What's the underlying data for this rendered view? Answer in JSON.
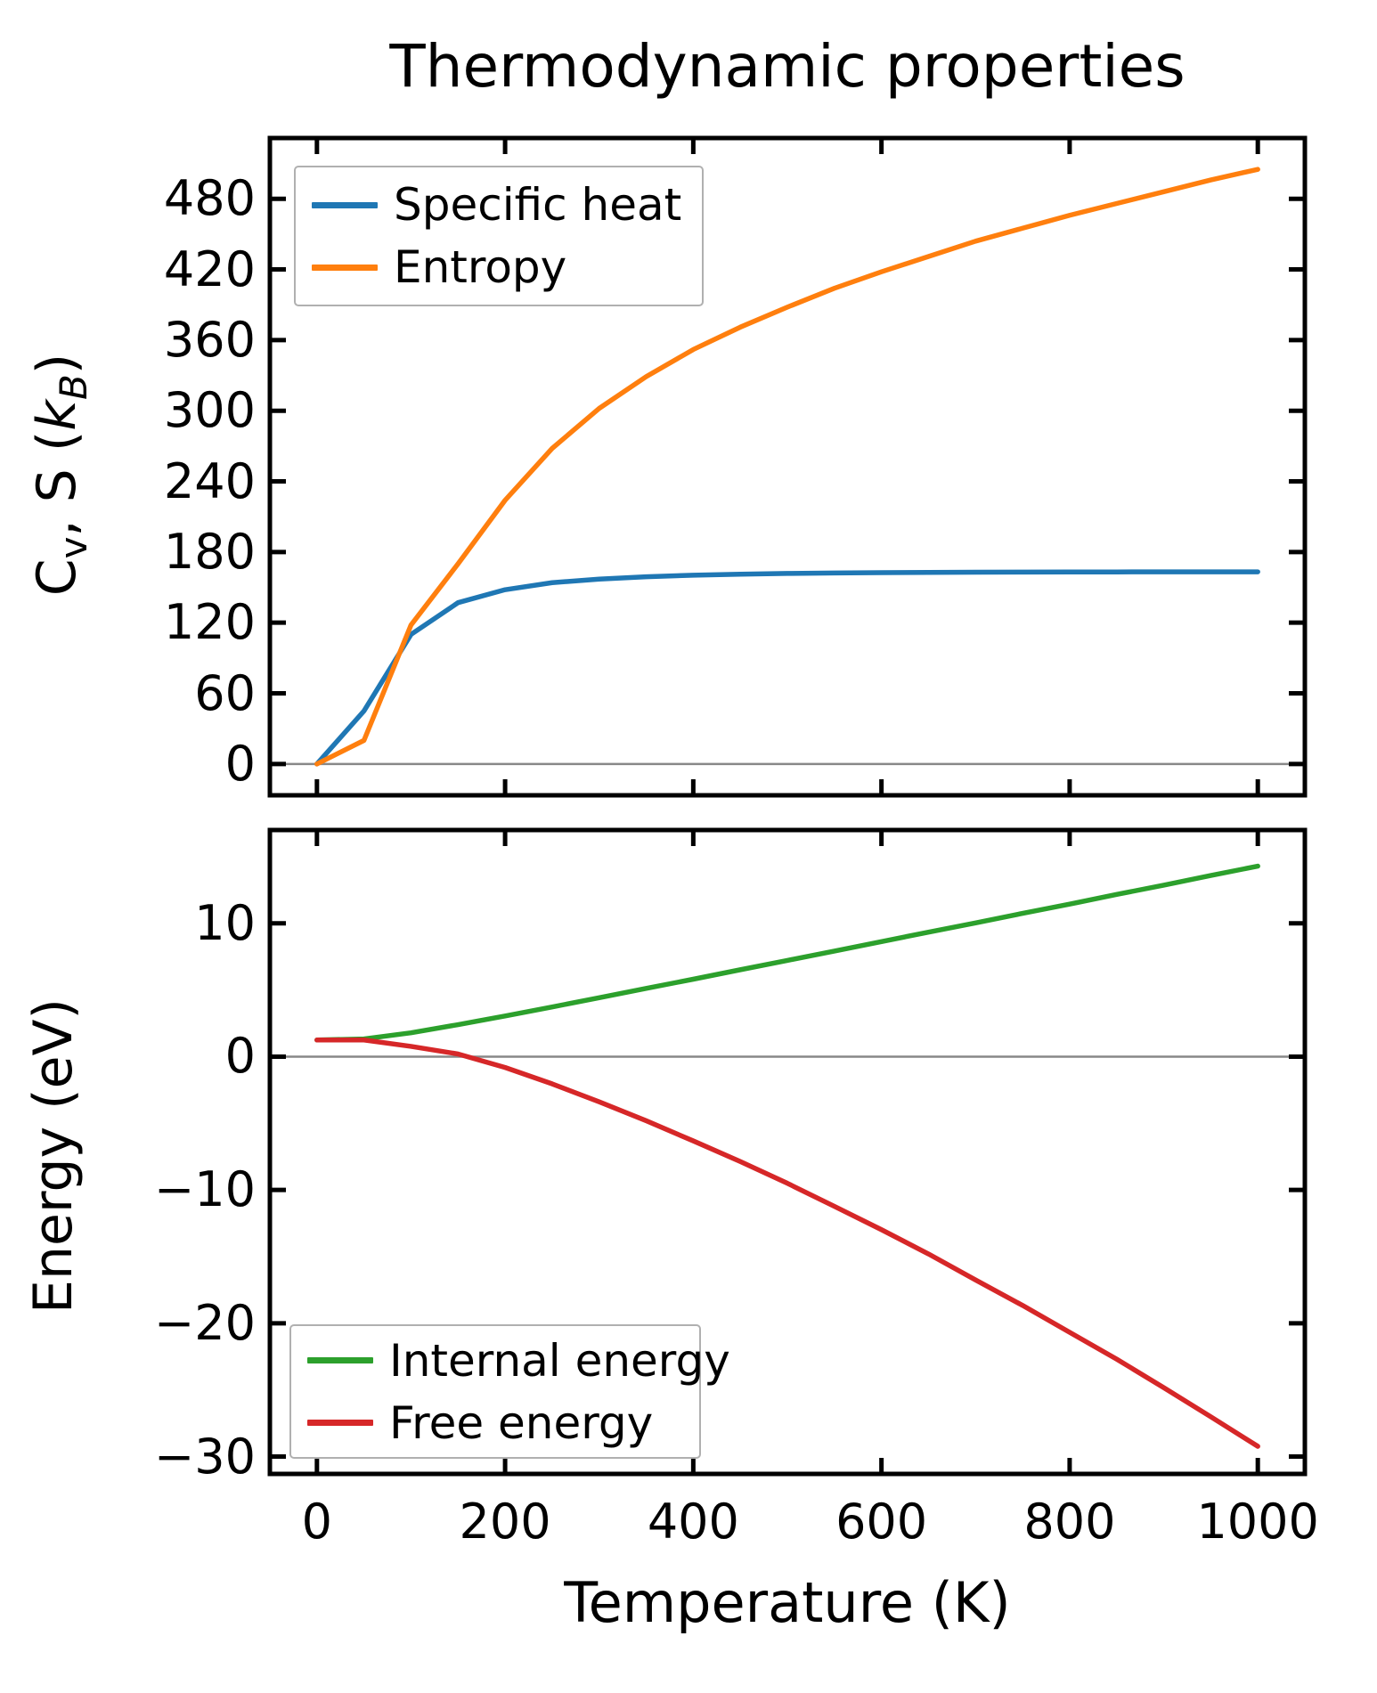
{
  "title": "Thermodynamic properties",
  "labels": {
    "ylabel_top_parts": [
      "C",
      "v",
      ", S (",
      "k",
      "B",
      ")"
    ],
    "ylabel_bottom": "Energy (eV)",
    "xlabel": "Temperature (K)"
  },
  "colors": {
    "specific_heat": "#1f77b4",
    "entropy": "#ff7f0e",
    "internal_energy": "#2ca02c",
    "free_energy": "#d62728",
    "zero_line": "#888888",
    "axis": "#000000",
    "legend_border": "#b0b0b0"
  },
  "chart_data": [
    {
      "type": "line",
      "title": "Thermodynamic properties",
      "xlabel": "",
      "ylabel": "Cv, S (kB)",
      "x": [
        0,
        50,
        100,
        150,
        200,
        250,
        300,
        350,
        400,
        450,
        500,
        550,
        600,
        650,
        700,
        750,
        800,
        850,
        900,
        950,
        1000
      ],
      "series": [
        {
          "name": "Specific heat",
          "color": "#1f77b4",
          "values": [
            0,
            45,
            110,
            137,
            148,
            154,
            157,
            159,
            160.3,
            161.2,
            161.8,
            162.2,
            162.5,
            162.7,
            162.85,
            162.95,
            163.05,
            163.1,
            163.15,
            163.2,
            163.2
          ]
        },
        {
          "name": "Entropy",
          "color": "#ff7f0e",
          "values": [
            0,
            20,
            118,
            170,
            224,
            268,
            302,
            329,
            352,
            371,
            388,
            404,
            418,
            431,
            444,
            455,
            466,
            476,
            486,
            496,
            505
          ]
        }
      ],
      "xlim": [
        -50,
        1050
      ],
      "ylim": [
        -26.6,
        531.6
      ],
      "yticks": [
        0,
        60,
        120,
        180,
        240,
        300,
        360,
        420,
        480
      ],
      "xticks": [
        0,
        200,
        400,
        600,
        800,
        1000
      ],
      "show_x_tick_labels": false,
      "zero_line": true,
      "grid": false,
      "legend_position": "upper left"
    },
    {
      "type": "line",
      "title": "",
      "xlabel": "Temperature (K)",
      "ylabel": "Energy (eV)",
      "x": [
        0,
        50,
        100,
        150,
        200,
        250,
        300,
        350,
        400,
        450,
        500,
        550,
        600,
        650,
        700,
        750,
        800,
        850,
        900,
        950,
        1000
      ],
      "series": [
        {
          "name": "Internal energy",
          "color": "#2ca02c",
          "values": [
            1.25,
            1.33,
            1.79,
            2.4,
            3.05,
            3.73,
            4.42,
            5.12,
            5.81,
            6.52,
            7.22,
            7.92,
            8.63,
            9.34,
            10.03,
            10.75,
            11.44,
            12.17,
            12.86,
            13.59,
            14.29
          ]
        },
        {
          "name": "Free energy",
          "color": "#d62728",
          "values": [
            1.25,
            1.25,
            0.77,
            0.2,
            -0.81,
            -2.04,
            -3.39,
            -4.81,
            -6.32,
            -7.87,
            -9.5,
            -11.23,
            -12.98,
            -14.8,
            -16.75,
            -18.66,
            -20.68,
            -22.69,
            -24.83,
            -27.01,
            -29.23
          ]
        }
      ],
      "xlim": [
        -50,
        1050
      ],
      "ylim": [
        -31.3,
        17.0
      ],
      "yticks": [
        10,
        0,
        -10,
        -20,
        -30
      ],
      "xticks": [
        0,
        200,
        400,
        600,
        800,
        1000
      ],
      "show_x_tick_labels": true,
      "zero_line": true,
      "grid": false,
      "legend_position": "lower left"
    }
  ]
}
